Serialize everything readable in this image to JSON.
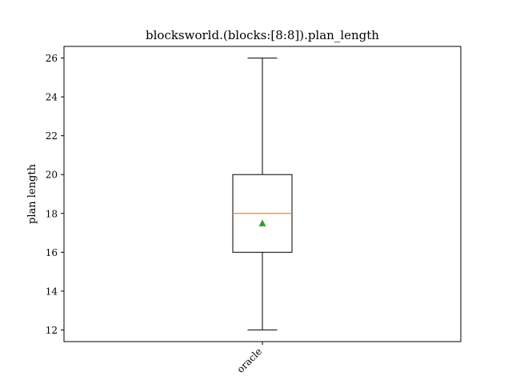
{
  "chart_data": {
    "type": "box",
    "title": "blocksworld.(blocks:[8:8]).plan_length",
    "xlabel": "",
    "ylabel": "plan length",
    "ylim": [
      11.4,
      26.6
    ],
    "yticks": [
      12,
      14,
      16,
      18,
      20,
      22,
      24,
      26
    ],
    "categories": [
      "oracle"
    ],
    "boxes": [
      {
        "category": "oracle",
        "whisker_low": 12,
        "q1": 16,
        "median": 18,
        "q3": 20,
        "whisker_high": 26,
        "mean": 17.5
      }
    ],
    "grid": false,
    "colors": {
      "median": "#ff7f0e",
      "mean": "#2ca02c",
      "box": "#000000"
    }
  }
}
